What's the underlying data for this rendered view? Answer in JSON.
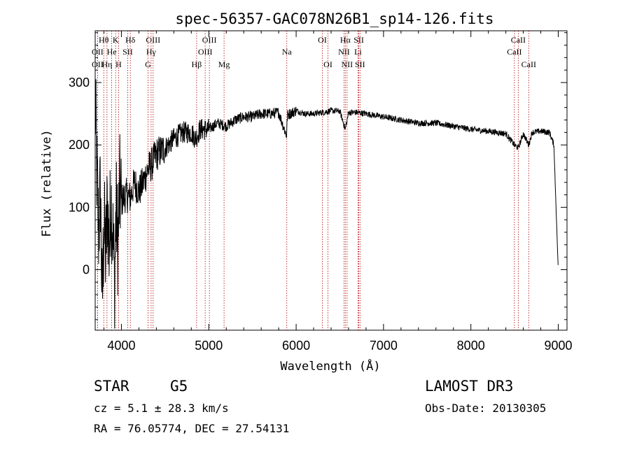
{
  "chart_data": {
    "type": "line",
    "title": "spec-56357-GAC078N26B1_sp14-126.fits",
    "xlabel": "Wavelength (Å)",
    "ylabel": "Flux (relative)",
    "xlim": [
      3700,
      9100
    ],
    "ylim": [
      -97,
      383
    ],
    "xticks": [
      4000,
      5000,
      6000,
      7000,
      8000,
      9000
    ],
    "yticks": [
      0,
      100,
      200,
      300
    ],
    "series": [
      {
        "name": "spectrum",
        "x": [
          3700,
          3720,
          3740,
          3760,
          3780,
          3800,
          3820,
          3840,
          3860,
          3880,
          3900,
          3920,
          3940,
          3960,
          3980,
          4000,
          4050,
          4100,
          4150,
          4200,
          4250,
          4300,
          4350,
          4400,
          4450,
          4500,
          4600,
          4700,
          4800,
          4850,
          4900,
          5000,
          5100,
          5200,
          5300,
          5400,
          5500,
          5600,
          5700,
          5800,
          5890,
          5900,
          6000,
          6100,
          6200,
          6300,
          6400,
          6500,
          6563,
          6600,
          6700,
          6800,
          7000,
          7200,
          7400,
          7600,
          7800,
          8000,
          8200,
          8400,
          8498,
          8542,
          8600,
          8662,
          8700,
          8800,
          8900,
          8950,
          9000
        ],
        "y": [
          270,
          150,
          60,
          130,
          -60,
          80,
          20,
          110,
          30,
          120,
          70,
          -20,
          100,
          40,
          130,
          110,
          120,
          115,
          140,
          125,
          140,
          160,
          170,
          185,
          190,
          195,
          210,
          220,
          220,
          210,
          225,
          225,
          235,
          230,
          240,
          245,
          245,
          250,
          250,
          252,
          215,
          248,
          255,
          250,
          250,
          252,
          255,
          254,
          225,
          252,
          252,
          250,
          245,
          240,
          235,
          235,
          230,
          225,
          222,
          218,
          200,
          195,
          218,
          200,
          220,
          222,
          220,
          200,
          -2
        ]
      }
    ],
    "lines": [
      {
        "label": "Hθ",
        "x": 3798,
        "row": 0
      },
      {
        "label": "K",
        "x": 3934,
        "row": 0
      },
      {
        "label": "Hδ",
        "x": 4102,
        "row": 0
      },
      {
        "label": "OIII",
        "x": 4363,
        "row": 0
      },
      {
        "label": "OIII",
        "x": 5007,
        "row": 0
      },
      {
        "label": "OI",
        "x": 6300,
        "row": 0
      },
      {
        "label": "Hα",
        "x": 6563,
        "row": 0
      },
      {
        "label": "SII",
        "x": 6717,
        "row": 0
      },
      {
        "label": "CaII",
        "x": 8542,
        "row": 0
      },
      {
        "label": "OII",
        "x": 3727,
        "row": 1
      },
      {
        "label": "He",
        "x": 3889,
        "row": 1
      },
      {
        "label": "SII",
        "x": 4072,
        "row": 1
      },
      {
        "label": "Hγ",
        "x": 4340,
        "row": 1
      },
      {
        "label": "OIII",
        "x": 4959,
        "row": 1
      },
      {
        "label": "Na",
        "x": 5893,
        "row": 1
      },
      {
        "label": "NII",
        "x": 6548,
        "row": 1
      },
      {
        "label": "Li",
        "x": 6708,
        "row": 1
      },
      {
        "label": "CaII",
        "x": 8498,
        "row": 1
      },
      {
        "label": "OII",
        "x": 3727,
        "row": 2
      },
      {
        "label": "Hη",
        "x": 3835,
        "row": 2
      },
      {
        "label": "H",
        "x": 3968,
        "row": 2
      },
      {
        "label": "G",
        "x": 4305,
        "row": 2
      },
      {
        "label": "Hβ",
        "x": 4861,
        "row": 2
      },
      {
        "label": "Mg",
        "x": 5175,
        "row": 2
      },
      {
        "label": "OI",
        "x": 6364,
        "row": 2
      },
      {
        "label": "NII",
        "x": 6583,
        "row": 2
      },
      {
        "label": "SII",
        "x": 6731,
        "row": 2
      },
      {
        "label": "CaII",
        "x": 8662,
        "row": 2
      }
    ]
  },
  "info": {
    "class": "STAR",
    "subclass": "G5",
    "survey": "LAMOST DR3",
    "cz": "cz = 5.1 ± 28.3 km/s",
    "obs_date": "Obs-Date: 20130305",
    "radec": "RA =  76.05774, DEC =  27.54131"
  }
}
